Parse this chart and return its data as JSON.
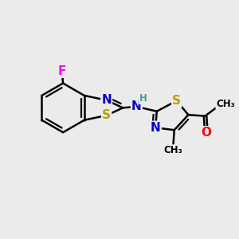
{
  "background_color": "#ebebeb",
  "bond_color": "#000000",
  "bond_width": 1.8,
  "atom_colors": {
    "N": "#0000cc",
    "S": "#b8a000",
    "O": "#ff0000",
    "F": "#ff00ff",
    "H": "#40a0a0",
    "C": "#000000"
  },
  "font_size_atom": 11,
  "font_size_small": 8.5,
  "xlim": [
    0,
    10
  ],
  "ylim": [
    0,
    10
  ]
}
